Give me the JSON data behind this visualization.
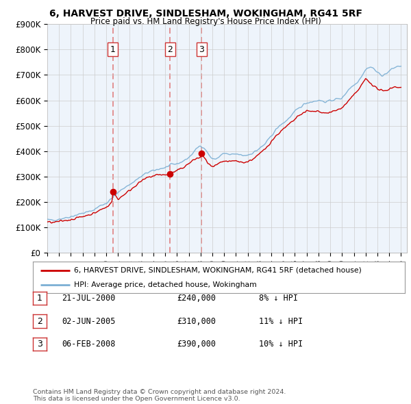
{
  "title": "6, HARVEST DRIVE, SINDLESHAM, WOKINGHAM, RG41 5RF",
  "subtitle": "Price paid vs. HM Land Registry's House Price Index (HPI)",
  "xlim_start": 1995.0,
  "xlim_end": 2025.5,
  "ylim": [
    0,
    900000
  ],
  "yticks": [
    0,
    100000,
    200000,
    300000,
    400000,
    500000,
    600000,
    700000,
    800000,
    900000
  ],
  "ytick_labels": [
    "£0",
    "£100K",
    "£200K",
    "£300K",
    "£400K",
    "£500K",
    "£600K",
    "£700K",
    "£800K",
    "£900K"
  ],
  "sales": [
    {
      "date_num": 2000.55,
      "price": 240000,
      "label": "1",
      "date_str": "21-JUL-2000",
      "pct": "8%",
      "direction": "↓"
    },
    {
      "date_num": 2005.42,
      "price": 310000,
      "label": "2",
      "date_str": "02-JUN-2005",
      "pct": "11%",
      "direction": "↓"
    },
    {
      "date_num": 2008.09,
      "price": 390000,
      "label": "3",
      "date_str": "06-FEB-2008",
      "pct": "10%",
      "direction": "↓"
    }
  ],
  "legend_line1": "6, HARVEST DRIVE, SINDLESHAM, WOKINGHAM, RG41 5RF (detached house)",
  "legend_line2": "HPI: Average price, detached house, Wokingham",
  "footer1": "Contains HM Land Registry data © Crown copyright and database right 2024.",
  "footer2": "This data is licensed under the Open Government Licence v3.0.",
  "table_rows": [
    [
      "1",
      "21-JUL-2000",
      "£240,000",
      "8% ↓ HPI"
    ],
    [
      "2",
      "02-JUN-2005",
      "£310,000",
      "11% ↓ HPI"
    ],
    [
      "3",
      "06-FEB-2008",
      "£390,000",
      "10% ↓ HPI"
    ]
  ],
  "hpi_color": "#7bafd4",
  "price_color": "#cc0000",
  "vline_color": "#e08080",
  "shade_color": "#ddeeff",
  "background_color": "#ffffff",
  "grid_color": "#cccccc",
  "chart_bg": "#eef4fb"
}
